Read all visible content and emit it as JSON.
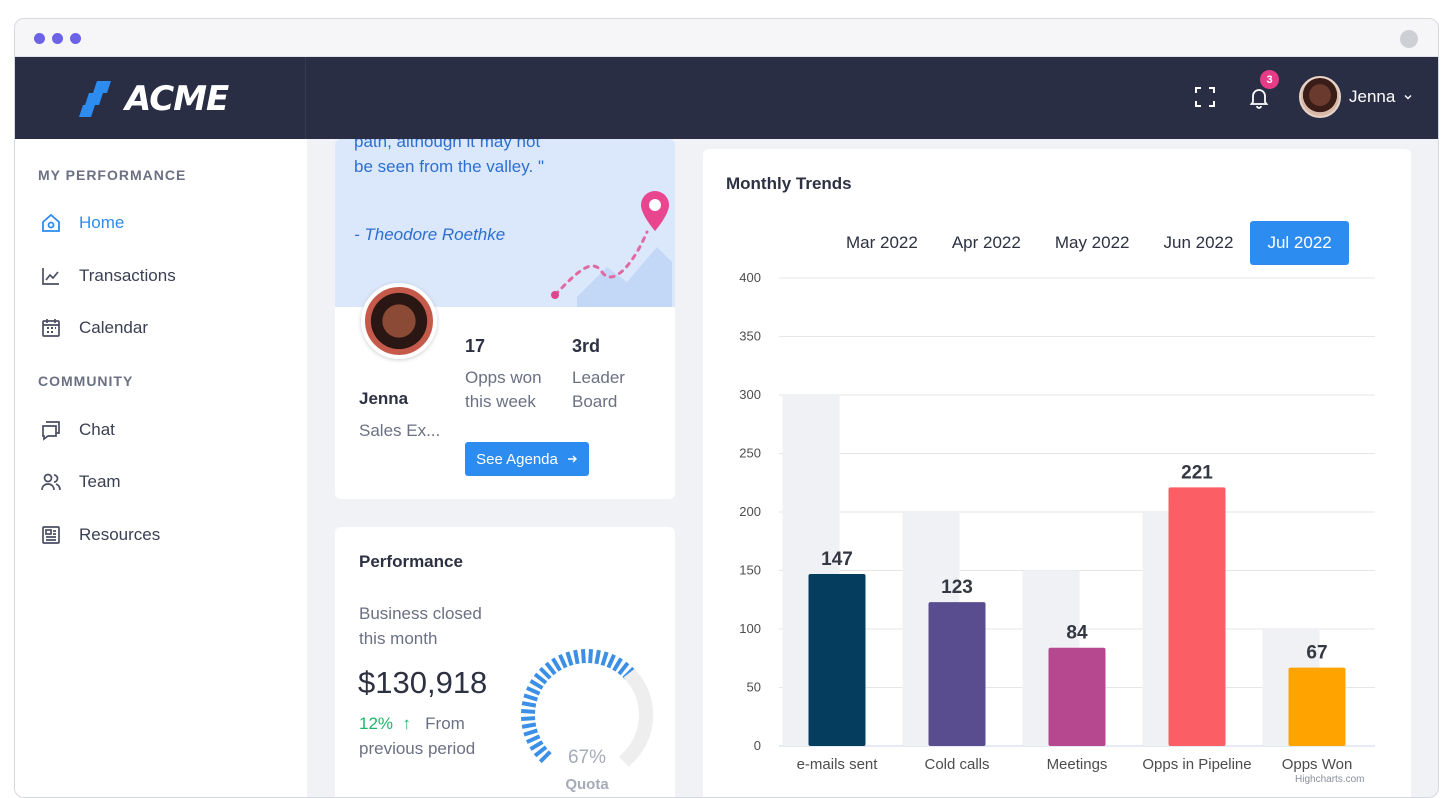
{
  "app": {
    "logo_text": "ACME"
  },
  "colors": {
    "accent": "#2d8cf0",
    "topbar": "#2a2e45",
    "badge": "#e63c87",
    "positive": "#1fb569"
  },
  "header": {
    "notifications_count": "3",
    "user_name": "Jenna",
    "fullscreen_icon": "fullscreen-icon",
    "bell_icon": "bell-icon",
    "caret_icon": "chevron-down-icon"
  },
  "sidebar": {
    "sections": [
      {
        "heading": "MY PERFORMANCE",
        "items": [
          {
            "label": "Home",
            "icon": "home-icon",
            "active": true
          },
          {
            "label": "Transactions",
            "icon": "chart-line-icon"
          },
          {
            "label": "Calendar",
            "icon": "calendar-icon"
          }
        ]
      },
      {
        "heading": "COMMUNITY",
        "items": [
          {
            "label": "Chat",
            "icon": "chat-icon"
          },
          {
            "label": "Team",
            "icon": "team-icon"
          },
          {
            "label": "Resources",
            "icon": "resources-icon"
          }
        ]
      }
    ]
  },
  "profile_card": {
    "quote": "path, although it may not be seen from the valley. \"",
    "author": "- Theodore Roethke",
    "name": "Jenna",
    "role": "Sales Ex...",
    "stats": [
      {
        "value": "17",
        "label": "Opps won this week"
      },
      {
        "value": "3rd",
        "label": "Leader Board"
      }
    ],
    "button_label": "See Agenda"
  },
  "performance_card": {
    "title": "Performance",
    "subtitle": "Business closed this month",
    "amount": "$130,918",
    "change_pct": "12%",
    "change_text": "From previous period",
    "gauge_value": "67%",
    "gauge_label": "Quota",
    "gauge_fraction": 0.67
  },
  "trends_card": {
    "title": "Monthly Trends",
    "tabs": [
      "Mar 2022",
      "Apr 2022",
      "May 2022",
      "Jun 2022",
      "Jul 2022"
    ],
    "active_tab": 4,
    "credits": "Highcharts.com"
  },
  "chart_data": {
    "type": "bar",
    "categories": [
      "e-mails sent",
      "Cold calls",
      "Meetings",
      "Opps in Pipeline",
      "Opps Won"
    ],
    "series": [
      {
        "values": [
          147,
          123,
          84,
          221,
          67
        ],
        "colors": [
          "#053d5e",
          "#5a4d8f",
          "#b5488f",
          "#fb5e64",
          "#ffa301"
        ]
      },
      {
        "values": [
          300,
          200,
          150,
          200,
          100
        ],
        "color": "#f0f1f5"
      }
    ],
    "ylim": [
      0,
      400
    ],
    "yticks": [
      0,
      50,
      100,
      150,
      200,
      250,
      300,
      350,
      400
    ],
    "grid": true,
    "data_labels": true
  }
}
